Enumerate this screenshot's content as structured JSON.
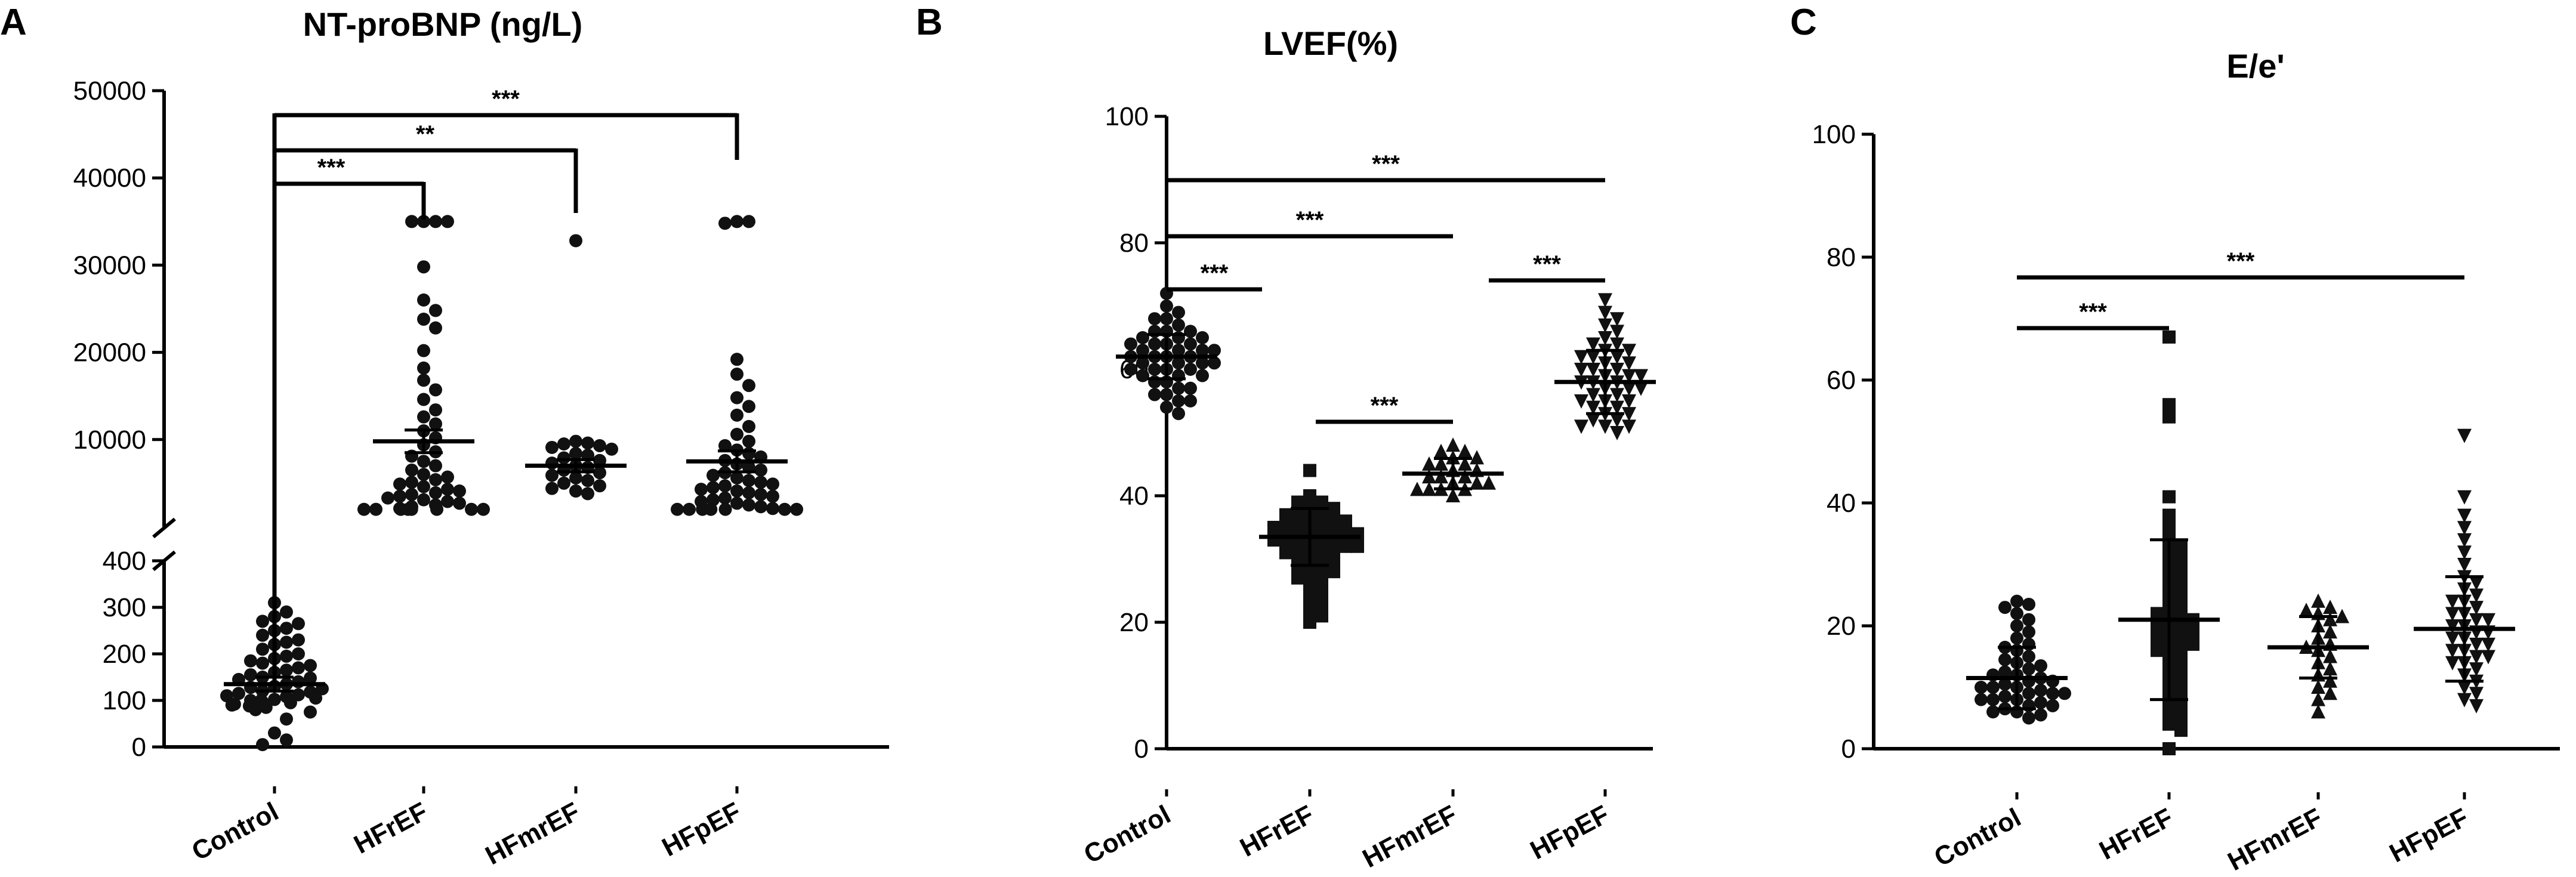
{
  "panels": [
    {
      "letter": "A"
    },
    {
      "letter": "B"
    },
    {
      "letter": "C"
    }
  ],
  "chart_data": [
    {
      "type": "scatter",
      "title": "NT-proBNP (ng/L)",
      "categories": [
        "Control",
        "HFrEF",
        "HFmrEF",
        "HFpEF"
      ],
      "ylabel": "",
      "y_scale": "broken",
      "y_segments": [
        {
          "range": [
            0,
            400
          ]
        },
        {
          "range": [
            0,
            50000
          ]
        }
      ],
      "yticks_lower": [
        "0",
        "100",
        "200",
        "300",
        "400"
      ],
      "yticks_upper": [
        "10000",
        "20000",
        "30000",
        "40000",
        "50000"
      ],
      "yticks_lower_values": [
        0,
        100,
        200,
        300,
        400
      ],
      "yticks_upper_values": [
        10000,
        20000,
        30000,
        40000,
        50000
      ],
      "marker": "circle",
      "series": [
        {
          "category": "Control",
          "mean": 135,
          "sem": 15,
          "values": [
            310,
            290,
            280,
            270,
            265,
            255,
            250,
            240,
            230,
            225,
            220,
            210,
            200,
            195,
            190,
            185,
            180,
            175,
            170,
            165,
            160,
            155,
            150,
            148,
            145,
            140,
            135,
            130,
            128,
            125,
            120,
            118,
            115,
            112,
            110,
            108,
            105,
            102,
            100,
            100,
            98,
            95,
            92,
            90,
            88,
            85,
            80,
            75,
            60,
            30,
            15,
            5
          ]
        },
        {
          "category": "HFrEF",
          "mean": 9800,
          "sem": 1300,
          "values": [
            35000,
            35000,
            35000,
            35000,
            29800,
            26000,
            24800,
            23800,
            22800,
            20200,
            18200,
            16800,
            15700,
            14600,
            13400,
            12600,
            11800,
            11000,
            10200,
            9400,
            8600,
            8100,
            7500,
            7000,
            6500,
            6000,
            5700,
            5400,
            5100,
            4900,
            4600,
            4300,
            4100,
            3900,
            3700,
            3500,
            3300,
            3100,
            2900,
            2700,
            2500,
            2300,
            2100,
            2000,
            1900,
            1800,
            1600,
            1400,
            1200,
            1000,
            800
          ]
        },
        {
          "category": "HFmrEF",
          "mean": 7000,
          "sem": 700,
          "values": [
            32800,
            9800,
            9600,
            9500,
            9300,
            9100,
            8900,
            8400,
            8200,
            7900,
            7600,
            7300,
            7000,
            6800,
            6500,
            6200,
            5900,
            5600,
            5300,
            5000,
            4700,
            4400,
            4100,
            3800
          ]
        },
        {
          "category": "HFpEF",
          "mean": 7500,
          "sem": 1200,
          "values": [
            35000,
            35000,
            34800,
            19200,
            17500,
            16200,
            14800,
            13800,
            12800,
            11500,
            10600,
            9800,
            9300,
            8800,
            8400,
            8000,
            7600,
            7200,
            6800,
            6500,
            6200,
            5900,
            5600,
            5300,
            5100,
            4900,
            4700,
            4500,
            4300,
            4100,
            3900,
            3700,
            3500,
            3300,
            3100,
            2900,
            2700,
            2500,
            2300,
            2100,
            1900,
            1700,
            1500,
            1300,
            1100,
            900,
            700
          ]
        }
      ],
      "significance": [
        {
          "from": "Control",
          "to": "HFpEF",
          "label": "***"
        },
        {
          "from": "Control",
          "to": "HFmrEF",
          "label": "**"
        },
        {
          "from": "Control",
          "to": "HFrEF",
          "label": "***"
        }
      ]
    },
    {
      "type": "scatter",
      "title": "LVEF(%)",
      "categories": [
        "Control",
        "HFrEF",
        "HFmrEF",
        "HFpEF"
      ],
      "ylabel": "",
      "ylim": [
        0,
        100
      ],
      "yticks": [
        "0",
        "20",
        "40",
        "60",
        "80",
        "100"
      ],
      "yticks_values": [
        0,
        20,
        40,
        60,
        80,
        100
      ],
      "markers": [
        "circle",
        "square",
        "triangle-up",
        "triangle-down"
      ],
      "series": [
        {
          "category": "Control",
          "mean": 62,
          "sd": 3.5,
          "values": [
            72,
            70,
            69,
            68,
            68,
            67,
            66,
            66,
            65,
            65,
            65,
            64,
            64,
            64,
            63,
            63,
            63,
            62,
            62,
            62,
            62,
            61,
            61,
            61,
            60,
            60,
            60,
            59,
            59,
            58,
            58,
            57,
            57,
            56,
            56,
            55,
            55,
            54,
            53,
            63,
            61,
            60,
            59,
            64,
            66
          ]
        },
        {
          "category": "HFrEF",
          "mean": 33.5,
          "sd": 4.5,
          "values": [
            44,
            40,
            39,
            39,
            38,
            38,
            37,
            37,
            37,
            36,
            36,
            35,
            35,
            35,
            34,
            34,
            34,
            33,
            33,
            33,
            32,
            32,
            32,
            31,
            31,
            31,
            30,
            30,
            29,
            29,
            28,
            28,
            27,
            27,
            26,
            25,
            24,
            23,
            22,
            21,
            20,
            34,
            33,
            35,
            36,
            32
          ]
        },
        {
          "category": "HFmrEF",
          "mean": 43.5,
          "sd": 2.4,
          "values": [
            48,
            47,
            47,
            46,
            46,
            45,
            45,
            45,
            44,
            44,
            43,
            43,
            43,
            42,
            42,
            42,
            41,
            41,
            41,
            41,
            40
          ]
        },
        {
          "category": "HFpEF",
          "mean": 58,
          "sd": 5,
          "values": [
            71,
            69,
            68,
            67,
            66,
            65,
            64,
            64,
            63,
            63,
            62,
            62,
            61,
            61,
            60,
            60,
            59,
            59,
            59,
            58,
            58,
            58,
            57,
            57,
            56,
            56,
            55,
            55,
            54,
            54,
            53,
            53,
            52,
            52,
            51,
            51,
            51,
            50,
            60,
            57,
            62,
            55
          ]
        }
      ],
      "significance": [
        {
          "from": "Control",
          "to": "HFpEF",
          "label": "***"
        },
        {
          "from": "Control",
          "to": "HFmrEF",
          "label": "***"
        },
        {
          "from": "Control",
          "to": "HFrEF",
          "label": "***"
        },
        {
          "from": "HFmrEF",
          "to": "HFpEF",
          "label": "***"
        },
        {
          "from": "HFrEF",
          "to": "HFmrEF",
          "label": "***"
        }
      ]
    },
    {
      "type": "scatter",
      "title": "E/e'",
      "categories": [
        "Control",
        "HFrEF",
        "HFmrEF",
        "HFpEF"
      ],
      "ylabel": "",
      "ylim": [
        0,
        100
      ],
      "yticks": [
        "0",
        "20",
        "40",
        "60",
        "80",
        "100"
      ],
      "yticks_values": [
        0,
        20,
        40,
        60,
        80,
        100
      ],
      "markers": [
        "circle",
        "square",
        "triangle-up",
        "triangle-down"
      ],
      "series": [
        {
          "category": "Control",
          "mean": 11.5,
          "sd": 5,
          "values": [
            24,
            23.5,
            23,
            22,
            21,
            20,
            19,
            18,
            17,
            16.5,
            16,
            15,
            14.5,
            14,
            13.5,
            13,
            12.5,
            12,
            11.5,
            11,
            10.5,
            10,
            10,
            9.5,
            9,
            9,
            8.5,
            8,
            8,
            7.5,
            7,
            7,
            6.5,
            6,
            6,
            5.5,
            5,
            12,
            11,
            10,
            9,
            8
          ]
        },
        {
          "category": "HFrEF",
          "mean": 21,
          "sd": 13,
          "values": [
            67,
            56,
            54,
            41,
            38,
            36,
            34,
            33,
            32,
            31,
            30,
            29,
            28,
            27,
            26,
            25,
            24,
            23,
            22,
            21,
            20,
            20,
            19,
            18,
            18,
            17,
            16,
            16,
            15,
            14,
            13,
            12,
            11,
            10,
            9,
            8,
            7,
            6,
            5,
            4,
            3,
            0,
            22,
            21,
            19,
            17
          ]
        },
        {
          "category": "HFmrEF",
          "mean": 16.5,
          "sd": 5,
          "values": [
            24,
            23,
            22.5,
            22,
            21.5,
            21,
            20,
            19,
            18,
            17,
            16.5,
            16,
            15,
            14,
            13,
            12,
            11,
            10,
            9,
            8,
            6
          ]
        },
        {
          "category": "HFpEF",
          "mean": 19.5,
          "sd": 8.5,
          "values": [
            51,
            41,
            38,
            36,
            34,
            32,
            30,
            28,
            27,
            26,
            25,
            24,
            23,
            22,
            22,
            21,
            20,
            20,
            19,
            19,
            18,
            17,
            17,
            16,
            15,
            15,
            14,
            13,
            12,
            11,
            10,
            9,
            8,
            7,
            18,
            21,
            16,
            14,
            24
          ]
        }
      ],
      "significance": [
        {
          "from": "Control",
          "to": "HFpEF",
          "label": "***"
        },
        {
          "from": "Control",
          "to": "HFrEF",
          "label": "***"
        }
      ]
    }
  ]
}
